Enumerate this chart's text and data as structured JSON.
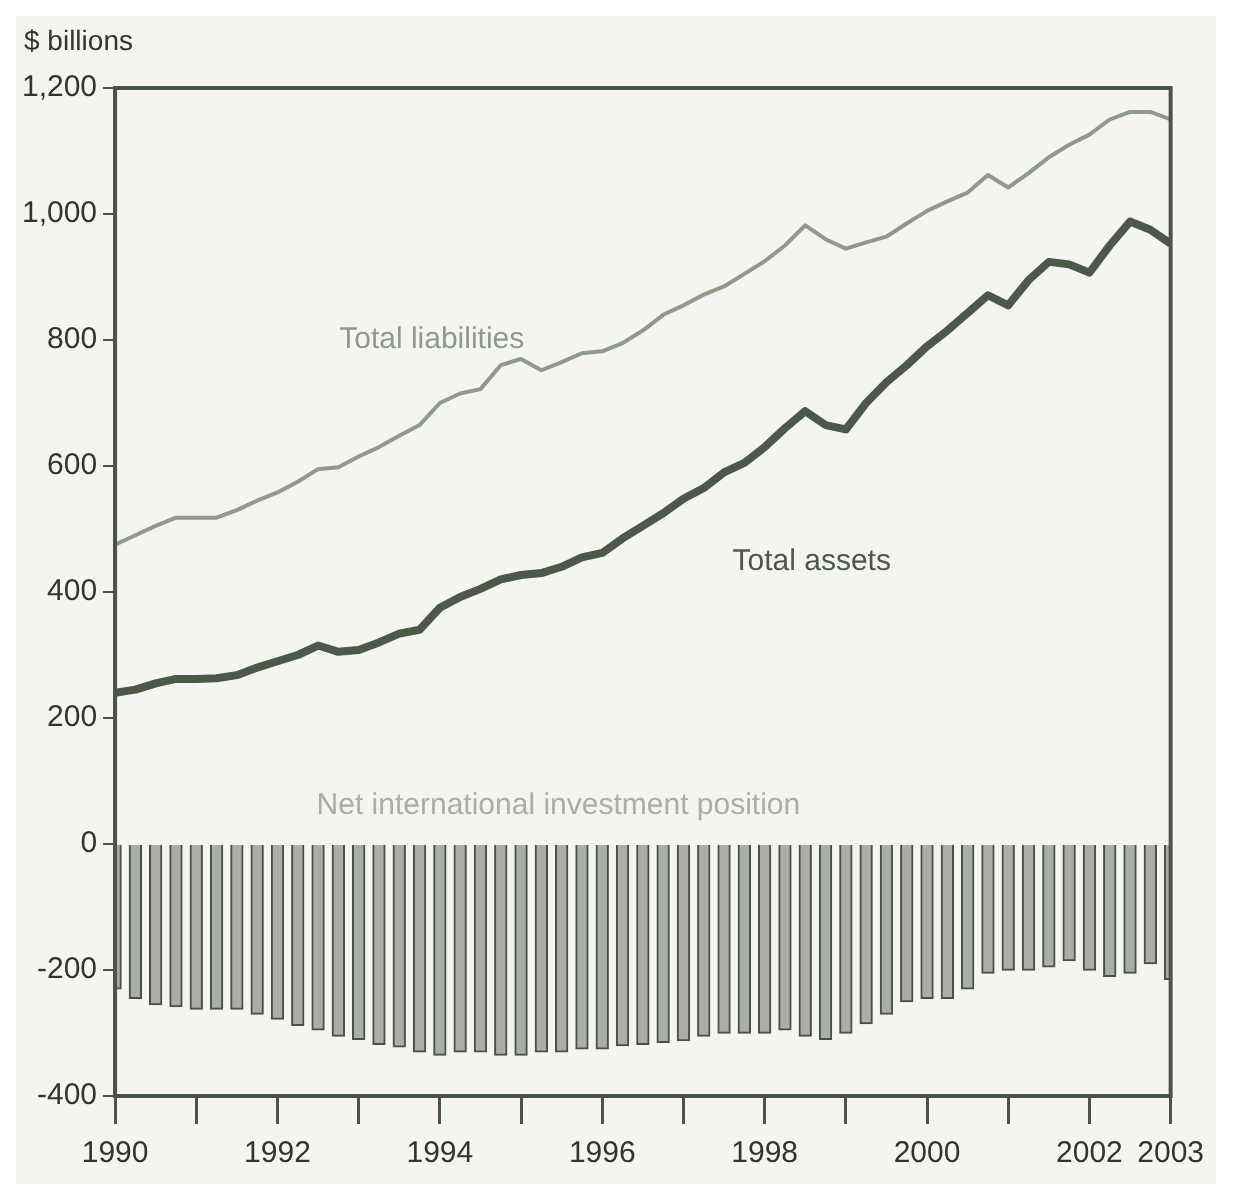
{
  "chart_data": {
    "type": "line",
    "ylabel": "$ billions",
    "x": [
      1990,
      1990.25,
      1990.5,
      1990.75,
      1991,
      1991.25,
      1991.5,
      1991.75,
      1992,
      1992.25,
      1992.5,
      1992.75,
      1993,
      1993.25,
      1993.5,
      1993.75,
      1994,
      1994.25,
      1994.5,
      1994.75,
      1995,
      1995.25,
      1995.5,
      1995.75,
      1996,
      1996.25,
      1996.5,
      1996.75,
      1997,
      1997.25,
      1997.5,
      1997.75,
      1998,
      1998.25,
      1998.5,
      1998.75,
      1999,
      1999.25,
      1999.5,
      1999.75,
      2000,
      2000.25,
      2000.5,
      2000.75,
      2001,
      2001.25,
      2001.5,
      2001.75,
      2002,
      2002.25,
      2002.5,
      2002.75,
      2003
    ],
    "series": [
      {
        "name": "Total liabilities",
        "color": "#8f9a8c",
        "values": [
          475,
          490,
          505,
          518,
          518,
          518,
          530,
          545,
          558,
          575,
          595,
          598,
          615,
          630,
          648,
          665,
          700,
          715,
          722,
          760,
          770,
          752,
          765,
          779,
          782,
          795,
          815,
          840,
          855,
          872,
          885,
          905,
          925,
          950,
          982,
          960,
          945,
          955,
          964,
          985,
          1005,
          1020,
          1034,
          1062,
          1042,
          1065,
          1090,
          1110,
          1126,
          1150,
          1162,
          1162,
          1150
        ]
      },
      {
        "name": "Total assets",
        "color": "#4d584b",
        "values": [
          240,
          245,
          255,
          262,
          262,
          263,
          268,
          280,
          290,
          300,
          315,
          305,
          308,
          320,
          334,
          340,
          375,
          392,
          405,
          420,
          427,
          430,
          440,
          455,
          462,
          485,
          505,
          525,
          548,
          565,
          590,
          605,
          630,
          660,
          687,
          665,
          658,
          700,
          733,
          760,
          790,
          815,
          843,
          871,
          855,
          895,
          924,
          920,
          907,
          950,
          988,
          975,
          953
        ]
      },
      {
        "name": "Net international investment position",
        "type": "bar",
        "color": "#a9aea6",
        "values": [
          -230,
          -245,
          -255,
          -258,
          -262,
          -262,
          -262,
          -270,
          -278,
          -288,
          -295,
          -305,
          -310,
          -318,
          -322,
          -330,
          -335,
          -330,
          -330,
          -335,
          -335,
          -330,
          -330,
          -325,
          -325,
          -320,
          -318,
          -315,
          -312,
          -305,
          -300,
          -300,
          -300,
          -295,
          -305,
          -310,
          -300,
          -285,
          -270,
          -250,
          -245,
          -245,
          -230,
          -205,
          -200,
          -200,
          -195,
          -185,
          -200,
          -210,
          -205,
          -190,
          -215
        ]
      }
    ],
    "xlim": [
      1990,
      2003
    ],
    "xticks": [
      1990,
      {
        "value": 1991,
        "label": null
      },
      1992,
      {
        "value": 1993,
        "label": null
      },
      1994,
      {
        "value": 1995,
        "label": null
      },
      1996,
      {
        "value": 1997,
        "label": null
      },
      1998,
      {
        "value": 1999,
        "label": null
      },
      2000,
      {
        "value": 2001,
        "label": null
      },
      2002,
      2003
    ],
    "ylim": [
      -400,
      1200
    ],
    "yticks": [
      -400,
      -200,
      0,
      200,
      400,
      600,
      800,
      {
        "value": 1000,
        "label": "1,000"
      },
      {
        "value": 1200,
        "label": "1,200"
      }
    ],
    "grid": false,
    "legend": false
  }
}
